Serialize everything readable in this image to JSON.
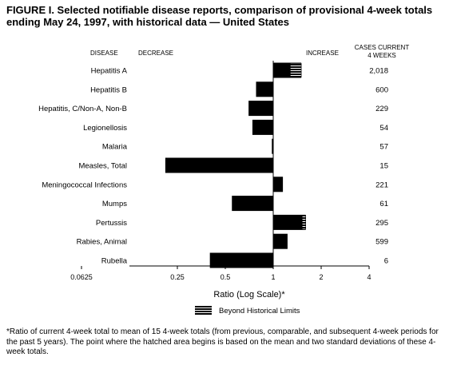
{
  "figure": {
    "title": "FIGURE I. Selected notifiable disease reports, comparison of provisional 4-week totals ending May 24, 1997, with historical data — United States",
    "footnote": "*Ratio of current 4-week total to mean of 15 4-week totals (from previous, comparable, and subsequent 4-week periods for the past 5 years). The point where the hatched area begins is based on the mean and two standard deviations of these 4-week totals."
  },
  "chart_data": {
    "type": "bar",
    "orientation": "horizontal",
    "xscale": "log2",
    "xlim": [
      0.0625,
      4
    ],
    "xticks": [
      "0.0625",
      "0.25",
      "0.5",
      "1",
      "2",
      "4"
    ],
    "xlabel": "Ratio (Log Scale)*",
    "header": {
      "disease": "DISEASE",
      "decrease": "DECREASE",
      "increase": "INCREASE",
      "cases_line1": "CASES CURRENT",
      "cases_line2": "4 WEEKS"
    },
    "legend": {
      "label": "Beyond Historical Limits",
      "placement": "bottom-center"
    },
    "categories": [
      "Hepatitis A",
      "Hepatitis B",
      "Hepatitis, C/Non-A, Non-B",
      "Legionellosis",
      "Malaria",
      "Measles, Total",
      "Meningococcal Infections",
      "Mumps",
      "Pertussis",
      "Rabies, Animal",
      "Rubella"
    ],
    "values": [
      1.5,
      0.78,
      0.7,
      0.74,
      0.98,
      0.21,
      1.15,
      0.55,
      1.6,
      1.23,
      0.4
    ],
    "beyond_limit_from": [
      1.28,
      null,
      null,
      null,
      null,
      null,
      null,
      null,
      1.52,
      null,
      null
    ],
    "cases_current_4_weeks": [
      "2,018",
      "600",
      "229",
      "54",
      "57",
      "15",
      "221",
      "61",
      "295",
      "599",
      "6"
    ]
  }
}
